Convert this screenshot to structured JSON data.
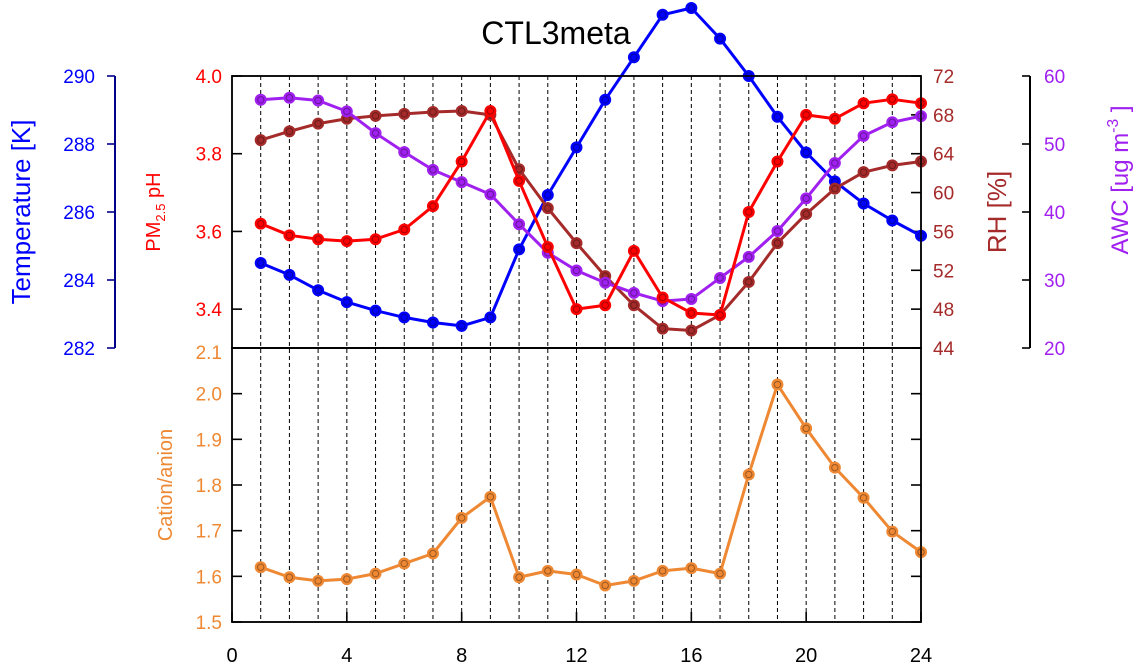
{
  "title": "CTL3meta",
  "colors": {
    "temperature": "#0000ff",
    "ph": "#ff0000",
    "rh": "#a52a2a",
    "awc": "#a020f0",
    "cation": "#ee8833",
    "axis": "#000000",
    "temp_axis_line": "#00008b"
  },
  "labels": {
    "temperature": "Temperature [K]",
    "ph_prefix": "PM",
    "ph_sub": "2.5",
    "ph_suffix": " pH",
    "rh": "RH [%]",
    "awc_prefix": "AWC [ug m",
    "awc_sup": "-3",
    "awc_suffix": " ]",
    "cation": "Cation/anion"
  },
  "chart_data": [
    {
      "type": "line",
      "panel": "top",
      "title": "CTL3meta",
      "x": [
        1,
        2,
        3,
        4,
        5,
        6,
        7,
        8,
        9,
        10,
        11,
        12,
        13,
        14,
        15,
        16,
        17,
        18,
        19,
        20,
        21,
        22,
        23,
        24
      ],
      "xlim": [
        0,
        24
      ],
      "x_ticks": [
        0,
        4,
        8,
        12,
        16,
        20,
        24
      ],
      "grid": "vertical dashed lines at each hour 1-23",
      "series": [
        {
          "name": "Temperature [K]",
          "axis": "outer-left",
          "ylim": [
            282,
            290
          ],
          "y_ticks": [
            282,
            284,
            286,
            288,
            290
          ],
          "values": [
            284.5,
            284.15,
            283.7,
            283.35,
            283.1,
            282.9,
            282.75,
            282.65,
            282.9,
            284.9,
            286.5,
            287.9,
            289.3,
            290.55,
            291.8,
            292.0,
            291.1,
            290.0,
            288.8,
            287.75,
            286.9,
            286.25,
            285.75,
            285.3
          ]
        },
        {
          "name": "PM2.5 pH",
          "axis": "inner-left",
          "ylim": [
            3.3,
            4.0
          ],
          "y_ticks": [
            3.4,
            3.6,
            3.8,
            4.0
          ],
          "values": [
            3.62,
            3.59,
            3.58,
            3.575,
            3.58,
            3.605,
            3.665,
            3.78,
            3.91,
            3.73,
            3.56,
            3.4,
            3.41,
            3.55,
            3.43,
            3.39,
            3.385,
            3.65,
            3.78,
            3.9,
            3.89,
            3.93,
            3.94,
            3.93
          ]
        },
        {
          "name": "RH [%]",
          "axis": "inner-right",
          "ylim": [
            44,
            72
          ],
          "y_ticks": [
            44,
            48,
            52,
            56,
            60,
            64,
            68,
            72
          ],
          "values": [
            65.4,
            66.3,
            67.1,
            67.6,
            67.9,
            68.1,
            68.3,
            68.4,
            68.0,
            62.4,
            58.4,
            54.8,
            51.4,
            48.4,
            46.0,
            45.8,
            47.4,
            50.8,
            54.8,
            57.8,
            60.4,
            62.1,
            62.8,
            63.2
          ]
        },
        {
          "name": "AWC [ug m-3]",
          "axis": "outer-right",
          "ylim": [
            20,
            60
          ],
          "y_ticks": [
            20,
            30,
            40,
            50,
            60
          ],
          "values": [
            56.5,
            56.8,
            56.4,
            54.8,
            51.6,
            48.8,
            46.2,
            44.4,
            42.6,
            38.2,
            34.0,
            31.4,
            29.6,
            28.1,
            26.9,
            27.2,
            30.3,
            33.4,
            37.2,
            42.0,
            47.2,
            51.2,
            53.2,
            54.1
          ]
        }
      ]
    },
    {
      "type": "line",
      "panel": "bottom",
      "series": [
        {
          "name": "Cation/anion",
          "values": [
            1.62,
            1.598,
            1.59,
            1.594,
            1.606,
            1.628,
            1.65,
            1.728,
            1.774,
            1.598,
            1.612,
            1.604,
            1.58,
            1.59,
            1.612,
            1.618,
            1.606,
            1.823,
            2.02,
            1.924,
            1.838,
            1.772,
            1.698,
            1.653
          ]
        }
      ],
      "x": [
        1,
        2,
        3,
        4,
        5,
        6,
        7,
        8,
        9,
        10,
        11,
        12,
        13,
        14,
        15,
        16,
        17,
        18,
        19,
        20,
        21,
        22,
        23,
        24
      ],
      "xlim": [
        0,
        24
      ],
      "x_ticks": [
        0,
        4,
        8,
        12,
        16,
        20,
        24
      ],
      "ylabel": "Cation/anion",
      "ylim": [
        1.5,
        2.1
      ],
      "y_ticks": [
        1.5,
        1.6,
        1.7,
        1.8,
        1.9,
        2.0,
        2.1
      ],
      "grid": "vertical dashed lines at each hour 1-23"
    }
  ]
}
